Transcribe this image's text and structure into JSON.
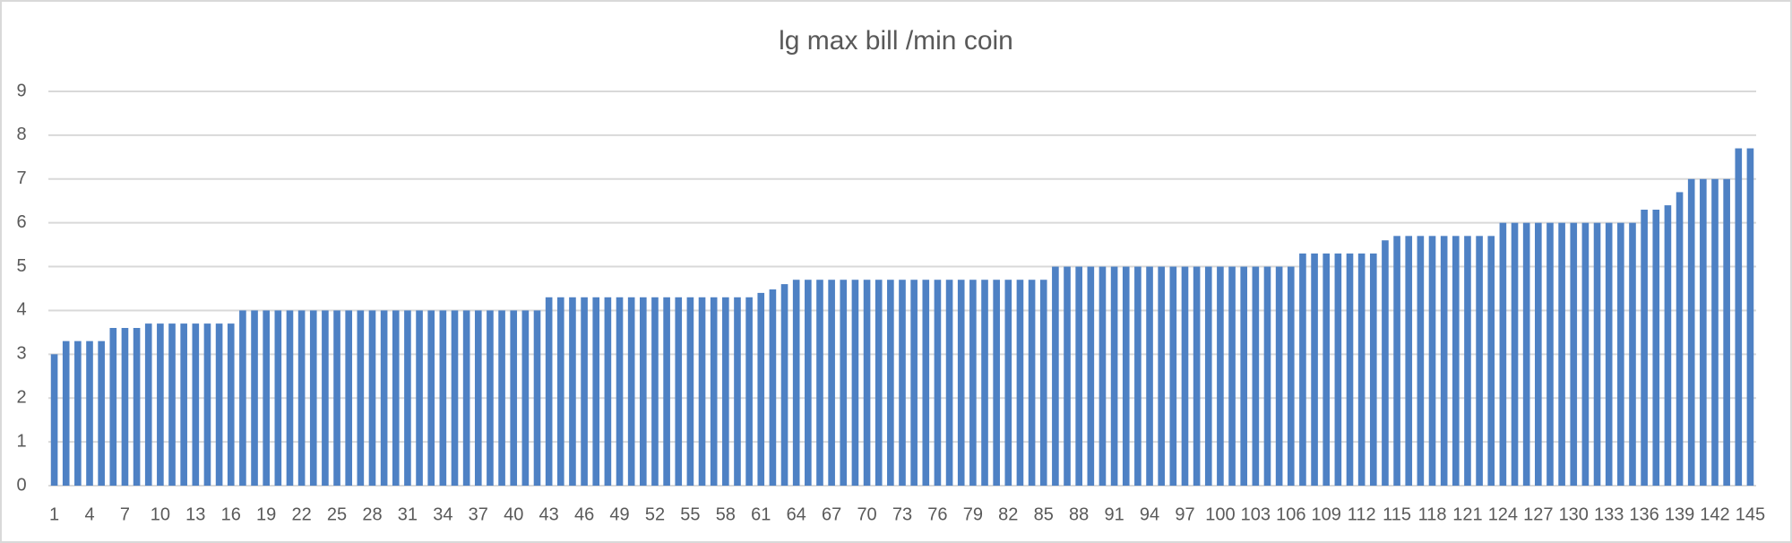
{
  "chart_data": {
    "type": "bar",
    "title": "lg max bill /min coin",
    "categories": [
      "1",
      null,
      null,
      "4",
      null,
      null,
      "7",
      null,
      null,
      "10",
      null,
      null,
      "13",
      null,
      null,
      "16",
      null,
      null,
      "19",
      null,
      null,
      "22",
      null,
      null,
      "25",
      null,
      null,
      "28",
      null,
      null,
      "31",
      null,
      null,
      "34",
      null,
      null,
      "37",
      null,
      null,
      "40",
      null,
      null,
      "43",
      null,
      null,
      "46",
      null,
      null,
      "49",
      null,
      null,
      "52",
      null,
      null,
      "55",
      null,
      null,
      "58",
      null,
      null,
      "61",
      null,
      null,
      "64",
      null,
      null,
      "67",
      null,
      null,
      "70",
      null,
      null,
      "73",
      null,
      null,
      "76",
      null,
      null,
      "79",
      null,
      null,
      "82",
      null,
      null,
      "85",
      null,
      null,
      "88",
      null,
      null,
      "91",
      null,
      null,
      "94",
      null,
      null,
      "97",
      null,
      null,
      "100",
      null,
      null,
      "103",
      null,
      null,
      "106",
      null,
      null,
      "109",
      null,
      null,
      "112",
      null,
      null,
      "115",
      null,
      null,
      "118",
      null,
      null,
      "121",
      null,
      null,
      "124",
      null,
      null,
      "127",
      null,
      null,
      "130",
      null,
      null,
      "133",
      null,
      null,
      "136",
      null,
      null,
      "139",
      null,
      null,
      "142",
      null,
      null,
      "145"
    ],
    "values": [
      3,
      3.3,
      3.3,
      3.3,
      3.3,
      3.6,
      3.6,
      3.6,
      3.7,
      3.7,
      3.7,
      3.7,
      3.7,
      3.7,
      3.7,
      3.7,
      4,
      4,
      4,
      4,
      4,
      4,
      4,
      4,
      4,
      4,
      4,
      4,
      4,
      4,
      4,
      4,
      4,
      4,
      4,
      4,
      4,
      4,
      4,
      4,
      4,
      4,
      4.3,
      4.3,
      4.3,
      4.3,
      4.3,
      4.3,
      4.3,
      4.3,
      4.3,
      4.3,
      4.3,
      4.3,
      4.3,
      4.3,
      4.3,
      4.3,
      4.3,
      4.3,
      4.4,
      4.48,
      4.6,
      4.7,
      4.7,
      4.7,
      4.7,
      4.7,
      4.7,
      4.7,
      4.7,
      4.7,
      4.7,
      4.7,
      4.7,
      4.7,
      4.7,
      4.7,
      4.7,
      4.7,
      4.7,
      4.7,
      4.7,
      4.7,
      4.7,
      5,
      5,
      5,
      5,
      5,
      5,
      5,
      5,
      5,
      5,
      5,
      5,
      5,
      5,
      5,
      5,
      5,
      5,
      5,
      5,
      5,
      5.3,
      5.3,
      5.3,
      5.3,
      5.3,
      5.3,
      5.3,
      5.6,
      5.7,
      5.7,
      5.7,
      5.7,
      5.7,
      5.7,
      5.7,
      5.7,
      5.7,
      6,
      6,
      6,
      6,
      6,
      6,
      6,
      6,
      6,
      6,
      6,
      6,
      6.3,
      6.3,
      6.4,
      6.7,
      7,
      7,
      7,
      7,
      7.7,
      7.7
    ],
    "color": "#4e81c4",
    "ylim": [
      0,
      9
    ],
    "yticks": [
      0,
      1,
      2,
      3,
      4,
      5,
      6,
      7,
      8,
      9
    ],
    "grid": true
  }
}
